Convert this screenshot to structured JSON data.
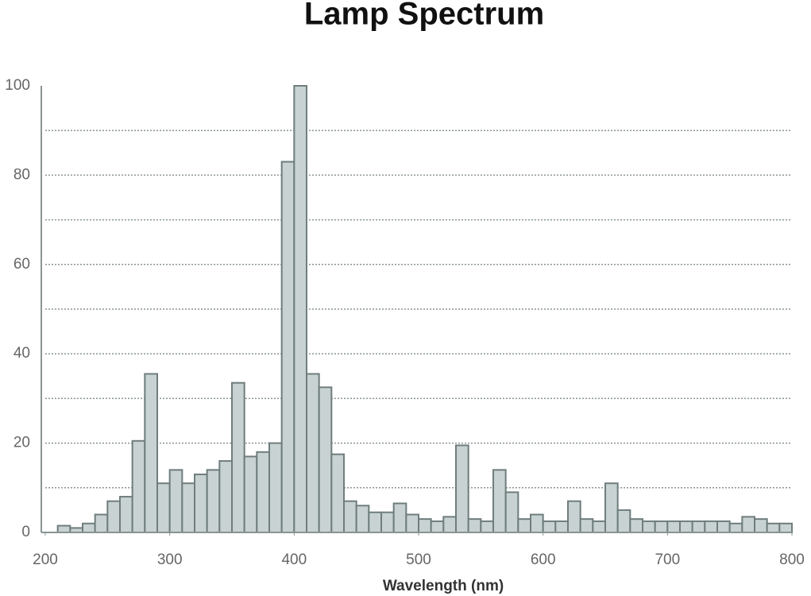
{
  "chart_data": {
    "type": "histogram",
    "title": "Lamp Spectrum",
    "x_label": "Wavelength (nm)",
    "bins": [
      210,
      220,
      230,
      240,
      250,
      260,
      270,
      280,
      290,
      300,
      310,
      320,
      330,
      340,
      350,
      360,
      370,
      380,
      390,
      400,
      410,
      420,
      430,
      440,
      450,
      460,
      470,
      480,
      490,
      500,
      510,
      520,
      530,
      540,
      550,
      560,
      570,
      580,
      590,
      600,
      610,
      620,
      630,
      640,
      650,
      660,
      670,
      680,
      690,
      700,
      710,
      720,
      730,
      740,
      750,
      760,
      770,
      780,
      790,
      800
    ],
    "values": [
      1.5,
      1,
      2,
      4,
      7,
      8,
      20.5,
      35.5,
      11,
      14,
      11,
      13,
      14,
      16,
      33.5,
      17,
      18,
      20,
      83,
      100,
      35.5,
      32.5,
      17.5,
      7,
      6,
      4.5,
      4.5,
      6.5,
      4,
      3,
      2.5,
      3.5,
      19.5,
      3,
      2.5,
      14,
      9,
      3,
      4,
      2.5,
      2.5,
      7,
      3,
      2.5,
      11,
      5,
      3,
      2.5,
      2.5,
      2.5,
      2.5,
      2.5,
      2.5,
      2.5,
      2,
      3.5,
      3,
      2,
      2
    ],
    "color": "#c8d2d2",
    "edge_color": "#6f7d7d",
    "xlim": [
      200,
      800
    ],
    "xticks": [
      200,
      300,
      400,
      500,
      600,
      700,
      800
    ],
    "ylim": [
      0,
      100
    ],
    "yticks": [
      0,
      20,
      40,
      60,
      80,
      100
    ],
    "grid": true,
    "ygrid": [
      10,
      20,
      30,
      40,
      50,
      60,
      70,
      80,
      90
    ]
  }
}
